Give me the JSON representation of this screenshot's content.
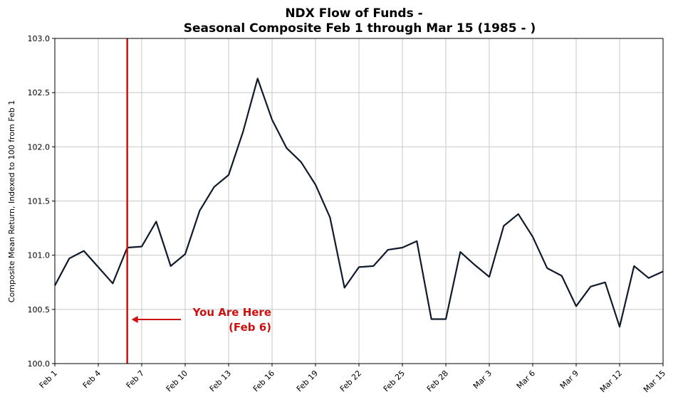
{
  "chart_data": {
    "type": "line",
    "title_line1": "NDX Flow of Funds -",
    "title_line2": "Seasonal Composite Feb 1 through Mar 15 (1985 - )",
    "xlabel": "",
    "ylabel": "Composite Mean Return, Indexed to 100 from Feb 1",
    "ylim": [
      100.0,
      103.0
    ],
    "yticks": [
      "100.0",
      "100.5",
      "101.0",
      "101.5",
      "102.0",
      "102.5",
      "103.0"
    ],
    "xtick_labels": [
      "Feb 1",
      "Feb 4",
      "Feb 7",
      "Feb 10",
      "Feb 13",
      "Feb 16",
      "Feb 19",
      "Feb 22",
      "Feb 25",
      "Feb 28",
      "Mar 3",
      "Mar 6",
      "Mar 9",
      "Mar 12",
      "Mar 15"
    ],
    "x": [
      "Feb 1",
      "Feb 2",
      "Feb 3",
      "Feb 4",
      "Feb 5",
      "Feb 6",
      "Feb 7",
      "Feb 8",
      "Feb 9",
      "Feb 10",
      "Feb 11",
      "Feb 12",
      "Feb 13",
      "Feb 14",
      "Feb 15",
      "Feb 16",
      "Feb 17",
      "Feb 18",
      "Feb 19",
      "Feb 20",
      "Feb 21",
      "Feb 22",
      "Feb 23",
      "Feb 24",
      "Feb 25",
      "Feb 26",
      "Feb 27",
      "Feb 28",
      "Mar 1",
      "Mar 2",
      "Mar 3",
      "Mar 4",
      "Mar 5",
      "Mar 6",
      "Mar 7",
      "Mar 8",
      "Mar 9",
      "Mar 10",
      "Mar 11",
      "Mar 12",
      "Mar 13",
      "Mar 14",
      "Mar 15"
    ],
    "series": [
      {
        "color": "#0f1a2a",
        "values": [
          100.72,
          100.97,
          101.04,
          100.89,
          100.74,
          101.07,
          101.08,
          101.31,
          100.9,
          101.01,
          101.41,
          101.63,
          101.74,
          102.14,
          102.63,
          102.25,
          101.99,
          101.86,
          101.65,
          101.35,
          100.7,
          100.89,
          100.9,
          101.05,
          101.07,
          101.13,
          100.41,
          100.41,
          101.03,
          100.91,
          100.8,
          101.27,
          101.38,
          101.17,
          100.88,
          100.81,
          100.53,
          100.71,
          100.75,
          100.34,
          100.9,
          100.79,
          100.85
        ]
      }
    ],
    "grid": true,
    "marker": {
      "x": "Feb 6",
      "color": "#cc1111",
      "label_line1": "You Are Here",
      "label_line2": "(Feb 6)"
    }
  }
}
